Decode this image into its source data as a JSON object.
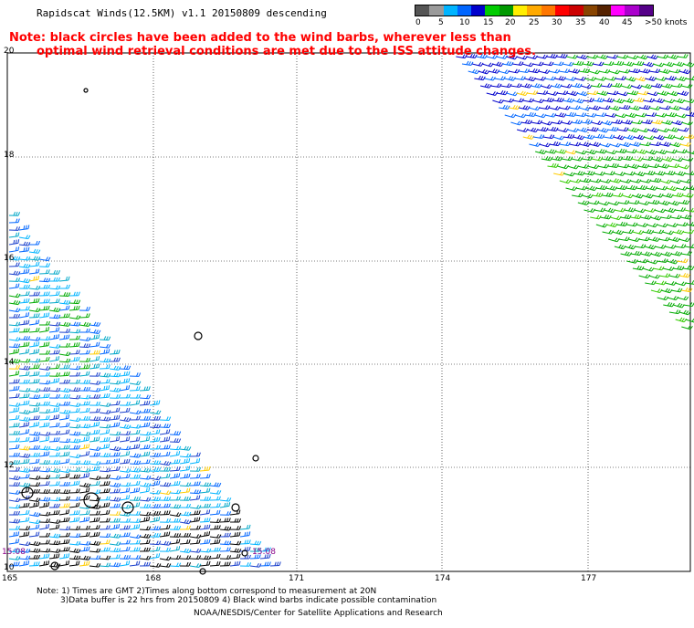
{
  "header": {
    "title": "Rapidscat Winds(12.5KM) v1.1 20150809 descending"
  },
  "note": {
    "line1": "Note: black circles have been added to the wind barbs, wherever less than",
    "line2": "optimal wind retrieval conditions are met due to the ISS attitude changes."
  },
  "legend": {
    "labels": [
      "0",
      "5",
      "10",
      "15",
      "20",
      "25",
      "30",
      "35",
      "40",
      "45",
      ">50 knots"
    ],
    "colors": [
      "#555555",
      "#9a9a9a",
      "#00b4ff",
      "#0066ff",
      "#0000cc",
      "#00cc00",
      "#009900",
      "#ffee00",
      "#ffaa00",
      "#ff7700",
      "#ff0000",
      "#cc0000",
      "#884400",
      "#552200",
      "#ff00ff",
      "#aa00cc",
      "#550088"
    ]
  },
  "axes": {
    "lat_labels": [
      "20",
      "18",
      "16",
      "14",
      "12",
      "10"
    ],
    "lon_labels": [
      "165",
      "168",
      "171",
      "174",
      "177"
    ]
  },
  "time_labels": [
    "15:08",
    "15:08"
  ],
  "footer": {
    "line1": "Note: 1) Times are GMT 2)Times along bottom correspond to measurement at 20N",
    "line2": "3)Data buffer is 22 hrs from 20150809 4) Black wind barbs indicate possible contamination",
    "line3": "NOAA/NESDIS/Center for Satellite Applications and Research"
  }
}
